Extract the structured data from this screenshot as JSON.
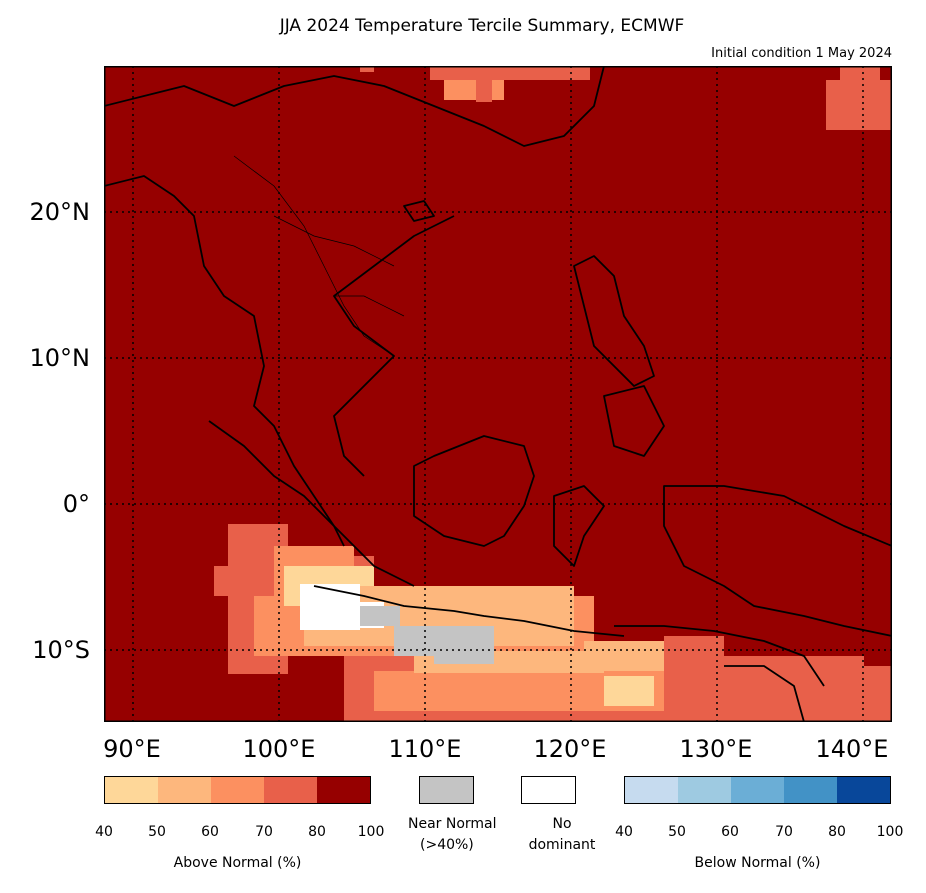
{
  "header": {
    "title": "JJA 2024 Temperature Tercile Summary, ECMWF",
    "subtitle": "Initial condition 1 May 2024"
  },
  "map": {
    "lat_labels": [
      "20°N",
      "10°N",
      "0°",
      "10°S"
    ],
    "lon_labels": [
      "90°E",
      "100°E",
      "110°E",
      "120°E",
      "130°E",
      "140°E"
    ],
    "extent": {
      "lon": [
        88,
        142
      ],
      "lat": [
        -15,
        30
      ]
    },
    "background_color": "#960000",
    "coastline_color": "#000000"
  },
  "legend": {
    "above": {
      "caption": "Above Normal (%)",
      "ticks": [
        "40",
        "50",
        "60",
        "70",
        "80",
        "100"
      ],
      "colors": [
        "#fed799",
        "#fdb77d",
        "#fc9060",
        "#e8604a",
        "#960000"
      ]
    },
    "near_normal": {
      "caption_line1": "Near Normal",
      "caption_line2": "(>40%)",
      "color": "#c4c4c4"
    },
    "no_dominant": {
      "caption_line1": "No",
      "caption_line2": "dominant",
      "color": "#ffffff"
    },
    "below": {
      "caption": "Below Normal (%)",
      "ticks": [
        "40",
        "50",
        "60",
        "70",
        "80",
        "100"
      ],
      "colors": [
        "#c6dbef",
        "#9ecae1",
        "#6baed6",
        "#4292c6",
        "#08479a"
      ]
    }
  }
}
